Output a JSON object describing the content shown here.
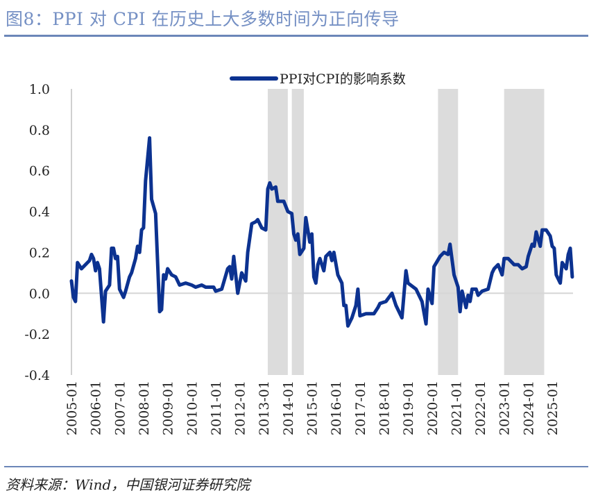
{
  "title": "图8：PPI 对 CPI 在历史上大多数时间为正向传导",
  "source": "资料来源：Wind，中国银河证券研究院",
  "chart_data": {
    "type": "line",
    "title": "",
    "xlabel": "",
    "ylabel": "",
    "ylim": [
      -0.4,
      1.0
    ],
    "yticks": [
      "1.0",
      "0.8",
      "0.6",
      "0.4",
      "0.2",
      "0.0",
      "-0.2",
      "-0.4"
    ],
    "xticks": [
      "2005-01",
      "2006-01",
      "2007-01",
      "2008-01",
      "2009-01",
      "2010-01",
      "2011-01",
      "2012-01",
      "2013-01",
      "2014-01",
      "2015-01",
      "2016-01",
      "2017-01",
      "2018-01",
      "2019-01",
      "2020-01",
      "2021-01",
      "2022-01",
      "2023-01",
      "2024-01",
      "2025-01"
    ],
    "grid": false,
    "legend_position": "top-center",
    "line_color": "#0c3290",
    "shade_color": "#dcdcdc",
    "shaded_periods": [
      [
        "2013-03",
        "2014-01"
      ],
      [
        "2014-03",
        "2014-09"
      ],
      [
        "2020-04",
        "2021-02"
      ],
      [
        "2023-01",
        "2024-09"
      ]
    ],
    "series": [
      {
        "name": "PPI对CPI的影响系数",
        "points": [
          [
            "2005-01",
            0.06
          ],
          [
            "2005-02",
            -0.02
          ],
          [
            "2005-03",
            -0.04
          ],
          [
            "2005-04",
            0.15
          ],
          [
            "2005-06",
            0.12
          ],
          [
            "2005-08",
            0.14
          ],
          [
            "2005-10",
            0.16
          ],
          [
            "2005-11",
            0.19
          ],
          [
            "2005-12",
            0.17
          ],
          [
            "2006-01",
            0.11
          ],
          [
            "2006-02",
            0.15
          ],
          [
            "2006-03",
            0.12
          ],
          [
            "2006-05",
            -0.14
          ],
          [
            "2006-06",
            0.01
          ],
          [
            "2006-08",
            0.04
          ],
          [
            "2006-09",
            0.22
          ],
          [
            "2006-10",
            0.22
          ],
          [
            "2006-11",
            0.17
          ],
          [
            "2006-12",
            0.18
          ],
          [
            "2007-01",
            0.02
          ],
          [
            "2007-03",
            -0.02
          ],
          [
            "2007-04",
            0.01
          ],
          [
            "2007-06",
            0.08
          ],
          [
            "2007-07",
            0.1
          ],
          [
            "2007-09",
            0.17
          ],
          [
            "2007-10",
            0.23
          ],
          [
            "2007-11",
            0.2
          ],
          [
            "2007-12",
            0.31
          ],
          [
            "2008-01",
            0.32
          ],
          [
            "2008-02",
            0.55
          ],
          [
            "2008-04",
            0.76
          ],
          [
            "2008-05",
            0.46
          ],
          [
            "2008-07",
            0.39
          ],
          [
            "2008-09",
            -0.09
          ],
          [
            "2008-10",
            -0.08
          ],
          [
            "2008-11",
            0.09
          ],
          [
            "2008-12",
            0.07
          ],
          [
            "2009-01",
            0.12
          ],
          [
            "2009-03",
            0.09
          ],
          [
            "2009-05",
            0.08
          ],
          [
            "2009-07",
            0.04
          ],
          [
            "2009-10",
            0.05
          ],
          [
            "2010-01",
            0.04
          ],
          [
            "2010-03",
            0.03
          ],
          [
            "2010-06",
            0.04
          ],
          [
            "2010-08",
            0.03
          ],
          [
            "2010-12",
            0.03
          ],
          [
            "2011-01",
            0.01
          ],
          [
            "2011-04",
            0.02
          ],
          [
            "2011-07",
            0.12
          ],
          [
            "2011-08",
            0.13
          ],
          [
            "2011-09",
            0.07
          ],
          [
            "2011-10",
            0.18
          ],
          [
            "2011-12",
            0.0
          ],
          [
            "2012-02",
            0.1
          ],
          [
            "2012-04",
            0.06
          ],
          [
            "2012-05",
            0.2
          ],
          [
            "2012-07",
            0.34
          ],
          [
            "2012-09",
            0.35
          ],
          [
            "2012-10",
            0.36
          ],
          [
            "2012-12",
            0.32
          ],
          [
            "2013-02",
            0.31
          ],
          [
            "2013-03",
            0.51
          ],
          [
            "2013-04",
            0.54
          ],
          [
            "2013-05",
            0.51
          ],
          [
            "2013-07",
            0.52
          ],
          [
            "2013-08",
            0.45
          ],
          [
            "2013-11",
            0.45
          ],
          [
            "2014-01",
            0.4
          ],
          [
            "2014-03",
            0.39
          ],
          [
            "2014-04",
            0.29
          ],
          [
            "2014-05",
            0.26
          ],
          [
            "2014-06",
            0.29
          ],
          [
            "2014-07",
            0.19
          ],
          [
            "2014-09",
            0.22
          ],
          [
            "2014-10",
            0.37
          ],
          [
            "2014-12",
            0.25
          ],
          [
            "2015-01",
            0.29
          ],
          [
            "2015-02",
            0.08
          ],
          [
            "2015-03",
            0.05
          ],
          [
            "2015-04",
            0.14
          ],
          [
            "2015-05",
            0.17
          ],
          [
            "2015-07",
            0.11
          ],
          [
            "2015-08",
            0.18
          ],
          [
            "2015-10",
            0.2
          ],
          [
            "2015-11",
            0.16
          ],
          [
            "2015-12",
            0.2
          ],
          [
            "2016-02",
            0.09
          ],
          [
            "2016-04",
            0.05
          ],
          [
            "2016-05",
            -0.06
          ],
          [
            "2016-06",
            -0.06
          ],
          [
            "2016-07",
            -0.16
          ],
          [
            "2016-09",
            -0.12
          ],
          [
            "2016-11",
            -0.06
          ],
          [
            "2016-12",
            0.02
          ],
          [
            "2017-01",
            -0.11
          ],
          [
            "2017-04",
            -0.1
          ],
          [
            "2017-08",
            -0.1
          ],
          [
            "2017-10",
            -0.07
          ],
          [
            "2017-11",
            -0.05
          ],
          [
            "2018-02",
            -0.04
          ],
          [
            "2018-05",
            0.0
          ],
          [
            "2018-07",
            -0.06
          ],
          [
            "2018-10",
            -0.12
          ],
          [
            "2018-12",
            0.11
          ],
          [
            "2019-01",
            0.05
          ],
          [
            "2019-05",
            0.02
          ],
          [
            "2019-08",
            -0.04
          ],
          [
            "2019-10",
            -0.15
          ],
          [
            "2019-11",
            0.02
          ],
          [
            "2020-01",
            -0.05
          ],
          [
            "2020-02",
            0.13
          ],
          [
            "2020-05",
            0.18
          ],
          [
            "2020-07",
            0.2
          ],
          [
            "2020-09",
            0.19
          ],
          [
            "2020-10",
            0.24
          ],
          [
            "2020-12",
            0.09
          ],
          [
            "2021-02",
            0.03
          ],
          [
            "2021-03",
            -0.09
          ],
          [
            "2021-04",
            0.01
          ],
          [
            "2021-06",
            -0.07
          ],
          [
            "2021-07",
            -0.01
          ],
          [
            "2021-08",
            -0.04
          ],
          [
            "2021-09",
            0.02
          ],
          [
            "2021-11",
            0.02
          ],
          [
            "2021-12",
            -0.01
          ],
          [
            "2022-02",
            0.01
          ],
          [
            "2022-05",
            0.02
          ],
          [
            "2022-07",
            0.1
          ],
          [
            "2022-08",
            0.12
          ],
          [
            "2022-10",
            0.14
          ],
          [
            "2022-12",
            0.09
          ],
          [
            "2023-01",
            0.17
          ],
          [
            "2023-03",
            0.17
          ],
          [
            "2023-06",
            0.14
          ],
          [
            "2023-08",
            0.14
          ],
          [
            "2023-10",
            0.12
          ],
          [
            "2023-12",
            0.13
          ],
          [
            "2024-01",
            0.18
          ],
          [
            "2024-03",
            0.24
          ],
          [
            "2024-04",
            0.23
          ],
          [
            "2024-05",
            0.3
          ],
          [
            "2024-07",
            0.23
          ],
          [
            "2024-08",
            0.31
          ],
          [
            "2024-10",
            0.31
          ],
          [
            "2024-12",
            0.28
          ],
          [
            "2025-01",
            0.23
          ],
          [
            "2025-02",
            0.22
          ],
          [
            "2025-03",
            0.09
          ],
          [
            "2025-05",
            0.05
          ],
          [
            "2025-06",
            0.15
          ],
          [
            "2025-08",
            0.12
          ],
          [
            "2025-09",
            0.19
          ],
          [
            "2025-10",
            0.22
          ],
          [
            "2025-11",
            0.08
          ]
        ]
      }
    ]
  }
}
